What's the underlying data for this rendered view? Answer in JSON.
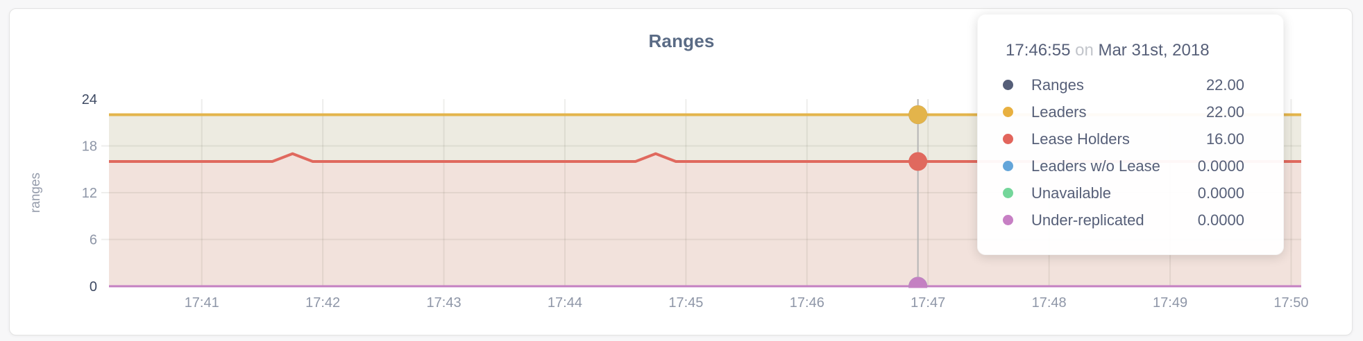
{
  "chart_data": {
    "type": "area",
    "title": "Ranges",
    "ylabel": "ranges",
    "ylim": [
      0,
      24
    ],
    "y_ticks": [
      0,
      6,
      12,
      18,
      24
    ],
    "x_start": "17:40:14",
    "x_end": "17:50:05",
    "x_ticks": [
      "17:41",
      "17:42",
      "17:43",
      "17:44",
      "17:45",
      "17:46",
      "17:47",
      "17:48",
      "17:49",
      "17:50"
    ],
    "grid": true,
    "legend_position": "tooltip-only",
    "series": [
      {
        "name": "Ranges",
        "color": "#555e78",
        "fill": null,
        "points": [
          [
            "17:40:14",
            22
          ],
          [
            "17:50:05",
            22
          ]
        ]
      },
      {
        "name": "Leaders",
        "color": "#e3b44b",
        "fill": "#edebe1",
        "points": [
          [
            "17:40:14",
            22
          ],
          [
            "17:50:05",
            22
          ]
        ]
      },
      {
        "name": "Lease Holders",
        "color": "#e0695e",
        "fill": "#f2e2dc",
        "points": [
          [
            "17:40:14",
            16
          ],
          [
            "17:41:35",
            16
          ],
          [
            "17:41:45",
            17
          ],
          [
            "17:41:55",
            16
          ],
          [
            "17:44:35",
            16
          ],
          [
            "17:44:45",
            17
          ],
          [
            "17:44:55",
            16
          ],
          [
            "17:50:05",
            16
          ]
        ]
      },
      {
        "name": "Leaders w/o Lease",
        "color": "#64a5d9",
        "fill": null,
        "points": [
          [
            "17:40:14",
            0
          ],
          [
            "17:50:05",
            0
          ]
        ]
      },
      {
        "name": "Unavailable",
        "color": "#74d69a",
        "fill": null,
        "points": [
          [
            "17:40:14",
            0
          ],
          [
            "17:50:05",
            0
          ]
        ]
      },
      {
        "name": "Under-replicated",
        "color": "#c480c2",
        "fill": null,
        "points": [
          [
            "17:40:14",
            0
          ],
          [
            "17:50:05",
            0
          ]
        ]
      }
    ],
    "hover": {
      "time": "17:46:55"
    },
    "colors": {
      "tick_major": "#3e4a63",
      "tick_minor": "#8e96a7",
      "axis_label": "#959cab",
      "grid": "rgba(90,85,70,0.10)",
      "hover_line": "#b5b5b5"
    }
  },
  "tooltip": {
    "time": "17:46:55",
    "on_word": "on",
    "date": "Mar 31st, 2018",
    "rows": [
      {
        "label": "Ranges",
        "value": "22.00",
        "color": "#555e78"
      },
      {
        "label": "Leaders",
        "value": "22.00",
        "color": "#e8b040"
      },
      {
        "label": "Lease Holders",
        "value": "16.00",
        "color": "#e2655c"
      },
      {
        "label": "Leaders w/o Lease",
        "value": "0.0000",
        "color": "#64a5d9"
      },
      {
        "label": "Unavailable",
        "value": "0.0000",
        "color": "#74d69a"
      },
      {
        "label": "Under-replicated",
        "value": "0.0000",
        "color": "#c77fc4"
      }
    ]
  }
}
